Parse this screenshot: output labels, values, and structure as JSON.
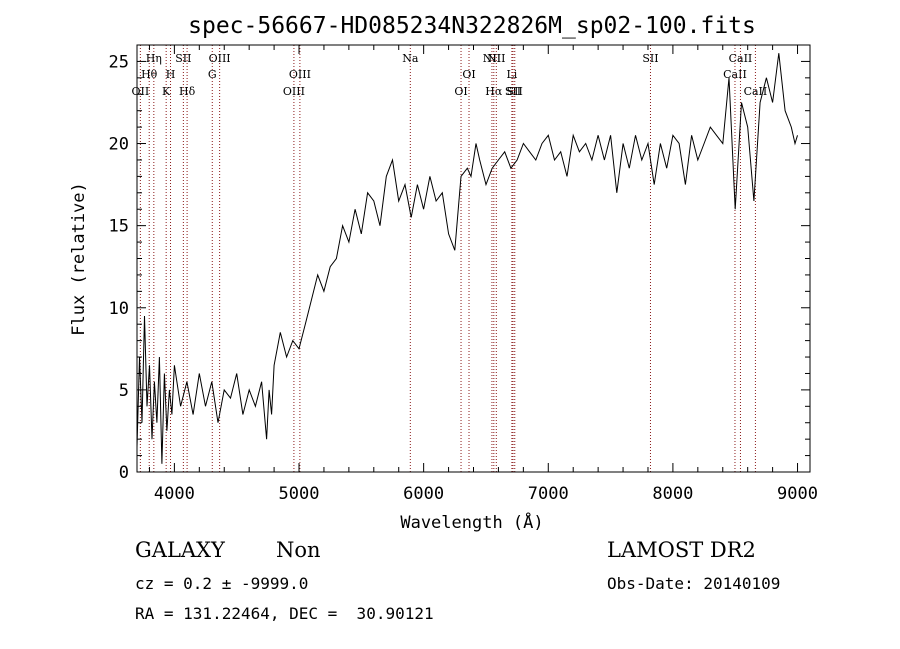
{
  "chart_data": {
    "type": "line",
    "title": "spec-56667-HD085234N322826M_sp02-100.fits",
    "xlabel": "Wavelength (Å)",
    "ylabel": "Flux (relative)",
    "xlim": [
      3700,
      9100
    ],
    "ylim": [
      0,
      26
    ],
    "xticks": [
      4000,
      5000,
      6000,
      7000,
      8000,
      9000
    ],
    "yticks": [
      0,
      5,
      10,
      15,
      20,
      25
    ],
    "grid": false,
    "line_color": "#000000",
    "marker_color": "#8b1a1a",
    "series": [
      {
        "x": [
          3700,
          3720,
          3740,
          3760,
          3780,
          3800,
          3820,
          3840,
          3860,
          3880,
          3900,
          3920,
          3940,
          3960,
          3980,
          4000,
          4050,
          4100,
          4150,
          4200,
          4250,
          4300,
          4350,
          4400,
          4450,
          4500,
          4550,
          4600,
          4650,
          4700,
          4740,
          4760,
          4780,
          4800,
          4850,
          4900,
          4950,
          5000,
          5050,
          5100,
          5150,
          5200,
          5250,
          5300,
          5350,
          5400,
          5450,
          5500,
          5550,
          5600,
          5650,
          5700,
          5750,
          5800,
          5850,
          5900,
          5950,
          6000,
          6050,
          6100,
          6150,
          6200,
          6250,
          6300,
          6350,
          6380,
          6420,
          6450,
          6500,
          6550,
          6600,
          6650,
          6700,
          6750,
          6800,
          6850,
          6900,
          6950,
          7000,
          7050,
          7100,
          7150,
          7200,
          7250,
          7300,
          7350,
          7400,
          7450,
          7500,
          7550,
          7600,
          7650,
          7700,
          7750,
          7800,
          7850,
          7900,
          7950,
          8000,
          8050,
          8100,
          8150,
          8200,
          8250,
          8300,
          8350,
          8400,
          8450,
          8500,
          8550,
          8600,
          8650,
          8700,
          8750,
          8800,
          8850,
          8900,
          8950,
          8980,
          9000
        ],
        "y": [
          1.5,
          7.0,
          3.0,
          9.5,
          4.0,
          6.5,
          2.0,
          5.5,
          3.0,
          7.0,
          0.5,
          6.0,
          2.5,
          5.0,
          3.5,
          6.5,
          4.0,
          5.5,
          3.5,
          6.0,
          4.0,
          5.5,
          3.0,
          5.0,
          4.5,
          6.0,
          3.5,
          5.0,
          4.0,
          5.5,
          2.0,
          5.0,
          3.5,
          6.5,
          8.5,
          7.0,
          8.0,
          7.5,
          9.0,
          10.5,
          12.0,
          11.0,
          12.5,
          13.0,
          15.0,
          14.0,
          16.0,
          14.5,
          17.0,
          16.5,
          15.0,
          18.0,
          19.0,
          16.5,
          17.5,
          15.5,
          17.5,
          16.0,
          18.0,
          16.5,
          17.0,
          14.5,
          13.5,
          18.0,
          18.5,
          18.0,
          20.0,
          19.0,
          17.5,
          18.5,
          19.0,
          19.5,
          18.5,
          19.0,
          20.0,
          19.5,
          19.0,
          20.0,
          20.5,
          19.0,
          19.5,
          18.0,
          20.5,
          19.5,
          20.0,
          19.0,
          20.5,
          19.0,
          20.5,
          17.0,
          20.0,
          18.5,
          20.5,
          19.0,
          20.0,
          17.5,
          20.0,
          18.5,
          20.5,
          20.0,
          17.5,
          20.5,
          19.0,
          20.0,
          21.0,
          20.5,
          20.0,
          24.0,
          16.0,
          22.5,
          21.0,
          16.5,
          22.5,
          24.0,
          22.5,
          25.5,
          22.0,
          21.0,
          20.0,
          20.5
        ]
      }
    ],
    "lines": [
      {
        "wavelength": 3727,
        "label": "OII",
        "row": 3
      },
      {
        "wavelength": 3798,
        "label": "Hθ",
        "row": 2
      },
      {
        "wavelength": 3835,
        "label": "Hη",
        "row": 1
      },
      {
        "wavelength": 3934,
        "label": "K",
        "row": 3
      },
      {
        "wavelength": 3969,
        "label": "H",
        "row": 2
      },
      {
        "wavelength": 4072,
        "label": "SII",
        "row": 1
      },
      {
        "wavelength": 4102,
        "label": "Hδ",
        "row": 3
      },
      {
        "wavelength": 4304,
        "label": "G",
        "row": 2
      },
      {
        "wavelength": 4363,
        "label": "OIII",
        "row": 1
      },
      {
        "wavelength": 4959,
        "label": "OIII",
        "row": 3
      },
      {
        "wavelength": 5007,
        "label": "OIII",
        "row": 2
      },
      {
        "wavelength": 5893,
        "label": "Na",
        "row": 1
      },
      {
        "wavelength": 6300,
        "label": "OI",
        "row": 3
      },
      {
        "wavelength": 6364,
        "label": "OI",
        "row": 2
      },
      {
        "wavelength": 6548,
        "label": "NII",
        "row": 1
      },
      {
        "wavelength": 6563,
        "label": "Hα",
        "row": 3
      },
      {
        "wavelength": 6583,
        "label": "NII",
        "row": 1
      },
      {
        "wavelength": 6708,
        "label": "Li",
        "row": 2
      },
      {
        "wavelength": 6717,
        "label": "SII",
        "row": 3
      },
      {
        "wavelength": 6731,
        "label": "SII",
        "row": 3
      },
      {
        "wavelength": 7820,
        "label": "SII",
        "row": 1
      },
      {
        "wavelength": 8498,
        "label": "CaII",
        "row": 2
      },
      {
        "wavelength": 8542,
        "label": "CaII",
        "row": 1
      },
      {
        "wavelength": 8662,
        "label": "CaII",
        "row": 3
      }
    ]
  },
  "info": {
    "object_type": "GALAXY",
    "subclass": "Non",
    "survey": "LAMOST DR2",
    "redshift_line": "cz = 0.2 ± -9999.0",
    "obs_date_line": "Obs-Date: 20140109",
    "coords_line": "RA = 131.22464, DEC =  30.90121"
  }
}
